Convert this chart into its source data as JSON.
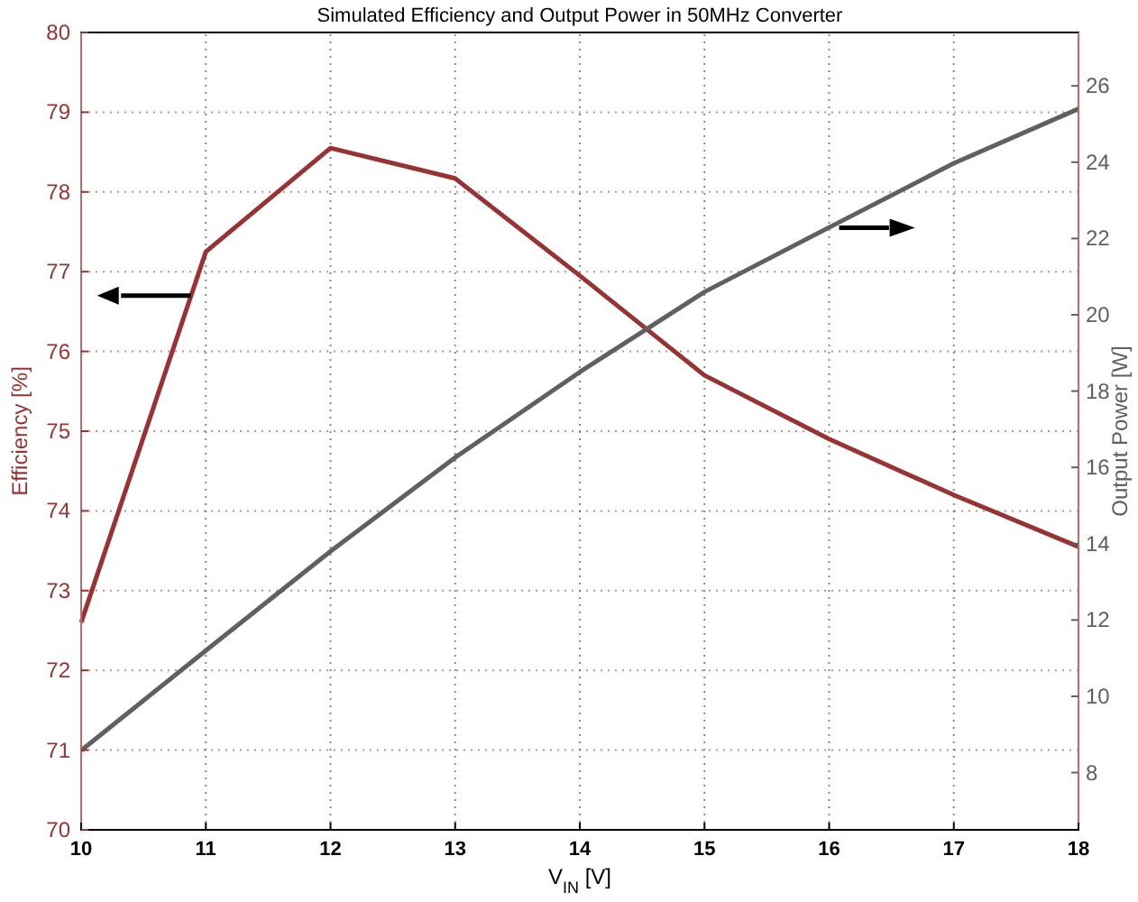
{
  "chart_data": {
    "type": "line",
    "title": "Simulated Efficiency and Output Power in 50MHz Converter",
    "xlabel": "V$_{IN}$ [V]",
    "ylabel": "Efficiency [%]",
    "y2label": "Output Power [W]",
    "x": [
      10,
      11,
      12,
      13,
      14,
      15,
      16,
      17,
      18
    ],
    "series": [
      {
        "color": "#993333",
        "values": [
          72.6,
          77.25,
          78.55,
          78.17,
          76.95,
          75.7,
          74.9,
          74.2,
          73.55
        ]
      },
      {
        "color": "#606060",
        "axis": "y2",
        "values": [
          8.58,
          11.2,
          13.8,
          16.26,
          18.5,
          20.6,
          22.29,
          23.97,
          25.4
        ]
      }
    ],
    "xlim": [
      10,
      18
    ],
    "xticks": [
      10,
      11,
      12,
      13,
      14,
      15,
      16,
      17,
      18
    ],
    "ylim": [
      70,
      80
    ],
    "yticks": [
      70,
      71,
      72,
      73,
      74,
      75,
      76,
      77,
      78,
      79,
      80
    ],
    "y2lim": [
      6.5,
      27.4
    ],
    "y2ticks": [
      8,
      10,
      12,
      14,
      16,
      18,
      20,
      22,
      24,
      26
    ],
    "grid": true,
    "line_style": "solid",
    "marker": "none"
  }
}
